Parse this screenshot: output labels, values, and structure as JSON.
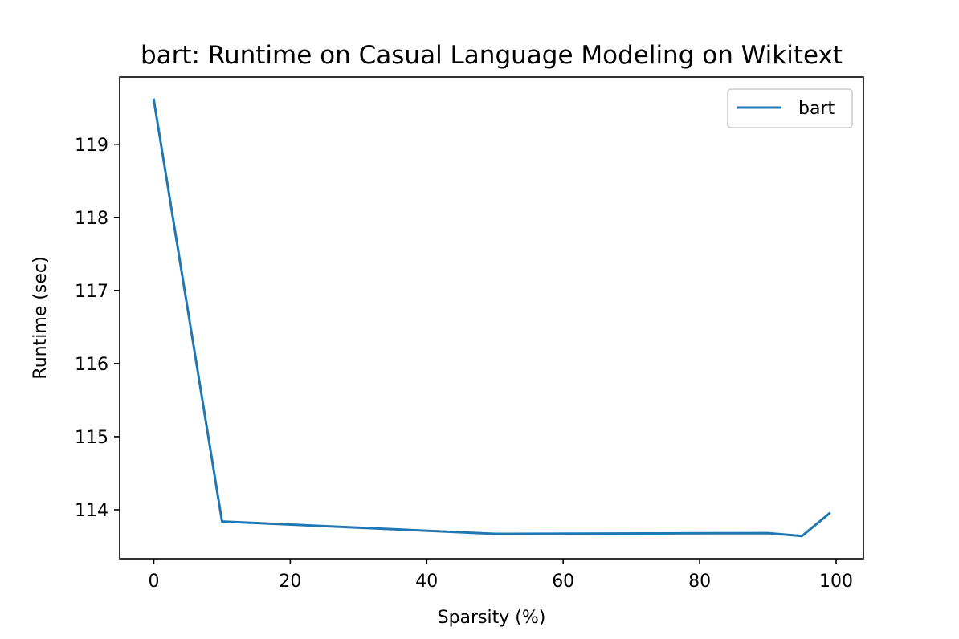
{
  "chart_data": {
    "type": "line",
    "title": "bart: Runtime on Casual Language Modeling on Wikitext",
    "xlabel": "Sparsity (%)",
    "ylabel": "Runtime (sec)",
    "xlim": [
      -5,
      104
    ],
    "ylim": [
      113.33,
      119.92
    ],
    "xticks": [
      0,
      20,
      40,
      60,
      80,
      100
    ],
    "yticks": [
      114,
      115,
      116,
      117,
      118,
      119
    ],
    "grid": false,
    "legend_position": "top-right",
    "series": [
      {
        "name": "bart",
        "color": "#1f77b4",
        "x": [
          0,
          10,
          50,
          90,
          95,
          99
        ],
        "y": [
          119.61,
          113.84,
          113.67,
          113.68,
          113.64,
          113.95
        ]
      }
    ]
  }
}
